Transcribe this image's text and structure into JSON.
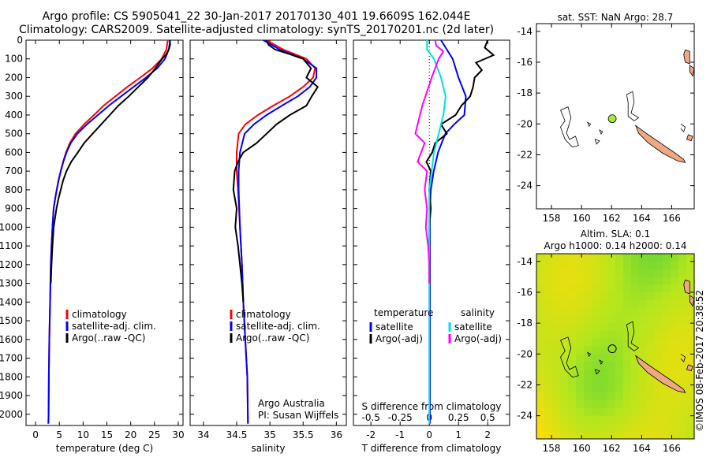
{
  "figure": {
    "title_line1": "Argo profile: CS 5905041_22 30-Jan-2017 20170130_401 19.6609S 162.044E",
    "title_line2": "Climatology: CARS2009. Satellite-adjusted climatology: synTS_20170201.nc (2d later)",
    "credit": "©IMOS 08-Feb-2017 20:38:52",
    "attribution_line1": "Argo Australia",
    "attribution_line2": "PI: Susan Wijffels"
  },
  "colors": {
    "climatology": "#ff0000",
    "satellite": "#0000ff",
    "argo": "#000000",
    "satellite_salinity": "#00e0e0",
    "argo_salinity": "#ff00ff",
    "land": "#f0a882",
    "sst_point": "#a8e830"
  },
  "chart_data": [
    {
      "type": "line",
      "xlabel": "temperature (deg C)",
      "ylabel": "",
      "xlim": [
        -2,
        31
      ],
      "ylim": [
        2060,
        0
      ],
      "xticks": [
        0,
        5,
        10,
        15,
        20,
        25,
        30
      ],
      "yticks": [
        0,
        100,
        200,
        300,
        400,
        500,
        600,
        700,
        800,
        900,
        1000,
        1100,
        1200,
        1300,
        1400,
        1500,
        1600,
        1700,
        1800,
        1900,
        2000
      ],
      "grid": false,
      "legend": "lower-center",
      "legend_entries": [
        "climatology",
        "satellite-adj. clim.",
        "Argo(..raw -QC)"
      ],
      "series": [
        {
          "name": "climatology",
          "color": "#ff0000",
          "x": [
            27.8,
            27.5,
            26.5,
            24.6,
            22.0,
            19.3,
            16.8,
            14.3,
            12.3,
            10.2,
            8.4,
            7.2,
            6.4,
            5.8,
            5.3,
            4.8,
            4.45,
            4.1,
            3.8,
            3.55,
            3.35,
            3.2,
            3.05,
            2.9,
            2.8,
            2.75,
            2.7
          ],
          "y": [
            0,
            50,
            100,
            150,
            200,
            250,
            300,
            350,
            400,
            450,
            500,
            550,
            600,
            650,
            700,
            750,
            800,
            850,
            900,
            1000,
            1100,
            1200,
            1400,
            1600,
            1800,
            2000,
            2050
          ]
        },
        {
          "name": "satellite-adj. clim.",
          "color": "#0000ff",
          "x": [
            28.3,
            28.0,
            27.2,
            25.6,
            23.2,
            20.6,
            18.0,
            15.4,
            13.1,
            10.8,
            8.8,
            7.4,
            6.5,
            5.85,
            5.3,
            4.85,
            4.45,
            4.1,
            3.8,
            3.55,
            3.35,
            3.2,
            3.05,
            2.9,
            2.8,
            2.75,
            2.7
          ],
          "y": [
            0,
            50,
            100,
            150,
            200,
            250,
            300,
            350,
            400,
            450,
            500,
            550,
            600,
            650,
            700,
            750,
            800,
            850,
            900,
            1000,
            1100,
            1200,
            1400,
            1600,
            1800,
            2000,
            2050
          ]
        },
        {
          "name": "Argo(..raw -QC)",
          "color": "#000000",
          "x": [
            28.2,
            28.3,
            28.0,
            27.5,
            26.6,
            25.2,
            23.6,
            21.6,
            19.6,
            17.4,
            15.6,
            13.8,
            12.0,
            10.2,
            8.9,
            7.5,
            6.5,
            5.8,
            5.3,
            4.8,
            4.4,
            4.1,
            3.8,
            3.55,
            3.35,
            3.2
          ],
          "y": [
            0,
            25,
            50,
            75,
            100,
            150,
            200,
            250,
            300,
            350,
            400,
            450,
            500,
            550,
            600,
            650,
            700,
            750,
            800,
            850,
            900,
            950,
            1000,
            1100,
            1200,
            1300
          ]
        }
      ]
    },
    {
      "type": "line",
      "xlabel": "salinity",
      "ylabel": "",
      "xlim": [
        33.8,
        36.15
      ],
      "ylim": [
        2060,
        0
      ],
      "xticks": [
        34,
        34.5,
        35,
        35.5,
        36
      ],
      "yticks": [
        0,
        100,
        200,
        300,
        400,
        500,
        600,
        700,
        800,
        900,
        1000,
        1100,
        1200,
        1300,
        1400,
        1500,
        1600,
        1700,
        1800,
        1900,
        2000
      ],
      "grid": false,
      "legend": "lower-center",
      "legend_entries": [
        "climatology",
        "satellite-adj. clim.",
        "Argo(..raw -QC)"
      ],
      "series": [
        {
          "name": "climatology",
          "color": "#ff0000",
          "x": [
            34.95,
            35.2,
            35.55,
            35.68,
            35.65,
            35.5,
            35.3,
            35.05,
            34.82,
            34.63,
            34.53,
            34.5,
            34.5,
            34.52,
            34.55,
            34.58,
            34.6,
            34.63,
            34.66,
            34.67
          ],
          "y": [
            0,
            50,
            100,
            150,
            200,
            250,
            300,
            350,
            400,
            450,
            500,
            600,
            700,
            800,
            1000,
            1200,
            1400,
            1600,
            1800,
            2050
          ]
        },
        {
          "name": "satellite-adj. clim.",
          "color": "#0000ff",
          "x": [
            34.9,
            35.15,
            35.5,
            35.7,
            35.7,
            35.6,
            35.42,
            35.18,
            34.95,
            34.76,
            34.62,
            34.55,
            34.53,
            34.53,
            34.55,
            34.58,
            34.6,
            34.63,
            34.66,
            34.67
          ],
          "y": [
            0,
            50,
            100,
            150,
            200,
            250,
            300,
            350,
            400,
            450,
            500,
            600,
            700,
            800,
            1000,
            1200,
            1400,
            1600,
            1800,
            2050
          ]
        },
        {
          "name": "Argo(..raw -QC)",
          "color": "#000000",
          "x": [
            34.95,
            34.98,
            35.08,
            35.3,
            35.5,
            35.62,
            35.55,
            35.72,
            35.63,
            35.55,
            35.3,
            35.1,
            34.95,
            34.8,
            34.6,
            34.52,
            34.47,
            34.45,
            34.5,
            34.48,
            34.52,
            34.55,
            34.58,
            34.6
          ],
          "y": [
            0,
            25,
            50,
            75,
            100,
            150,
            200,
            250,
            300,
            350,
            400,
            450,
            500,
            550,
            600,
            650,
            700,
            800,
            900,
            1000,
            1100,
            1200,
            1300,
            1400
          ]
        }
      ]
    },
    {
      "type": "line",
      "xlabel": "T difference from climatology",
      "ylabel": "",
      "xlim": [
        -2.6,
        2.75
      ],
      "ylim": [
        2060,
        0
      ],
      "xticks": [
        -2,
        -1,
        0,
        1,
        2
      ],
      "top_xlabel": "S difference from climatology",
      "top_xticks": [
        -0.5,
        -0.25,
        0,
        0.25,
        0.5
      ],
      "yticks": [
        0,
        100,
        200,
        300,
        400,
        500,
        600,
        700,
        800,
        900,
        1000,
        1100,
        1200,
        1300,
        1400,
        1500,
        1600,
        1700,
        1800,
        1900,
        2000
      ],
      "grid": false,
      "zero_line": true,
      "legend": "lower-center",
      "legend_groups": [
        {
          "heading": "temperature",
          "entries": [
            "satellite",
            "Argo(-adj)"
          ]
        },
        {
          "heading": "salinity",
          "entries": [
            "satellite",
            "Argo(-adj)"
          ]
        }
      ],
      "series": [
        {
          "name": "temperature satellite",
          "color": "#0000ff",
          "x": [
            0.4,
            0.6,
            0.8,
            1.0,
            1.25,
            1.2,
            0.85,
            0.55,
            0.42,
            0.3,
            0.15,
            0.05,
            0.02,
            0.02,
            0.02,
            0.02,
            0.02
          ],
          "y": [
            0,
            50,
            100,
            200,
            300,
            400,
            450,
            500,
            550,
            600,
            700,
            800,
            900,
            1000,
            1200,
            1600,
            2050
          ]
        },
        {
          "name": "temperature Argo(-adj)",
          "color": "#000000",
          "x": [
            2.0,
            1.9,
            2.2,
            1.6,
            1.8,
            1.55,
            1.5,
            1.4,
            1.1,
            0.9,
            0.4,
            0.6,
            0.2,
            0.1,
            -0.1,
            0.05,
            0.0,
            0.05,
            0.0,
            0.0,
            0.0
          ],
          "y": [
            0,
            40,
            80,
            120,
            160,
            200,
            250,
            300,
            350,
            400,
            450,
            500,
            550,
            600,
            650,
            700,
            800,
            900,
            1000,
            1200,
            1300
          ]
        },
        {
          "name": "salinity satellite",
          "color": "#00e0e0",
          "x": [
            -0.02,
            -0.02,
            0.04,
            0.1,
            0.14,
            0.12,
            0.08,
            0.04,
            0.02,
            0.0,
            0.0,
            0.0,
            0.0,
            0.0,
            0.0
          ],
          "y": [
            0,
            50,
            100,
            200,
            300,
            400,
            500,
            600,
            700,
            800,
            1000,
            1200,
            1500,
            1800,
            2050
          ]
        },
        {
          "name": "salinity Argo(-adj)",
          "color": "#ff00ff",
          "x": [
            0.05,
            0.06,
            0.12,
            0.08,
            0.02,
            -0.06,
            -0.1,
            -0.12,
            -0.04,
            -0.1,
            -0.02,
            -0.04,
            -0.02,
            -0.03,
            -0.01,
            0.0,
            0.0
          ],
          "y": [
            0,
            30,
            60,
            100,
            200,
            350,
            450,
            500,
            550,
            650,
            700,
            800,
            900,
            1000,
            1100,
            1200,
            1300
          ]
        }
      ]
    },
    {
      "type": "scatter",
      "title": "sat. SST: NaN Argo: 28.7",
      "xlim": [
        157,
        167.5
      ],
      "ylim": [
        -25.5,
        -13.5
      ],
      "xticks": [
        158,
        160,
        162,
        164,
        166
      ],
      "yticks": [
        -14,
        -16,
        -18,
        -20,
        -22,
        -24
      ],
      "x": [
        162.044
      ],
      "y": [
        -19.6609
      ]
    },
    {
      "type": "heatmap",
      "title_line1": "Altim. SLA: 0.1",
      "title_line2": "Argo h1000: 0.14 h2000: 0.14",
      "xlim": [
        157,
        167.5
      ],
      "ylim": [
        -25.5,
        -13.5
      ],
      "xticks": [
        158,
        160,
        162,
        164,
        166
      ],
      "yticks": [
        -14,
        -16,
        -18,
        -20,
        -22,
        -24
      ],
      "x": [
        162.044
      ],
      "y": [
        -19.6609
      ]
    }
  ]
}
